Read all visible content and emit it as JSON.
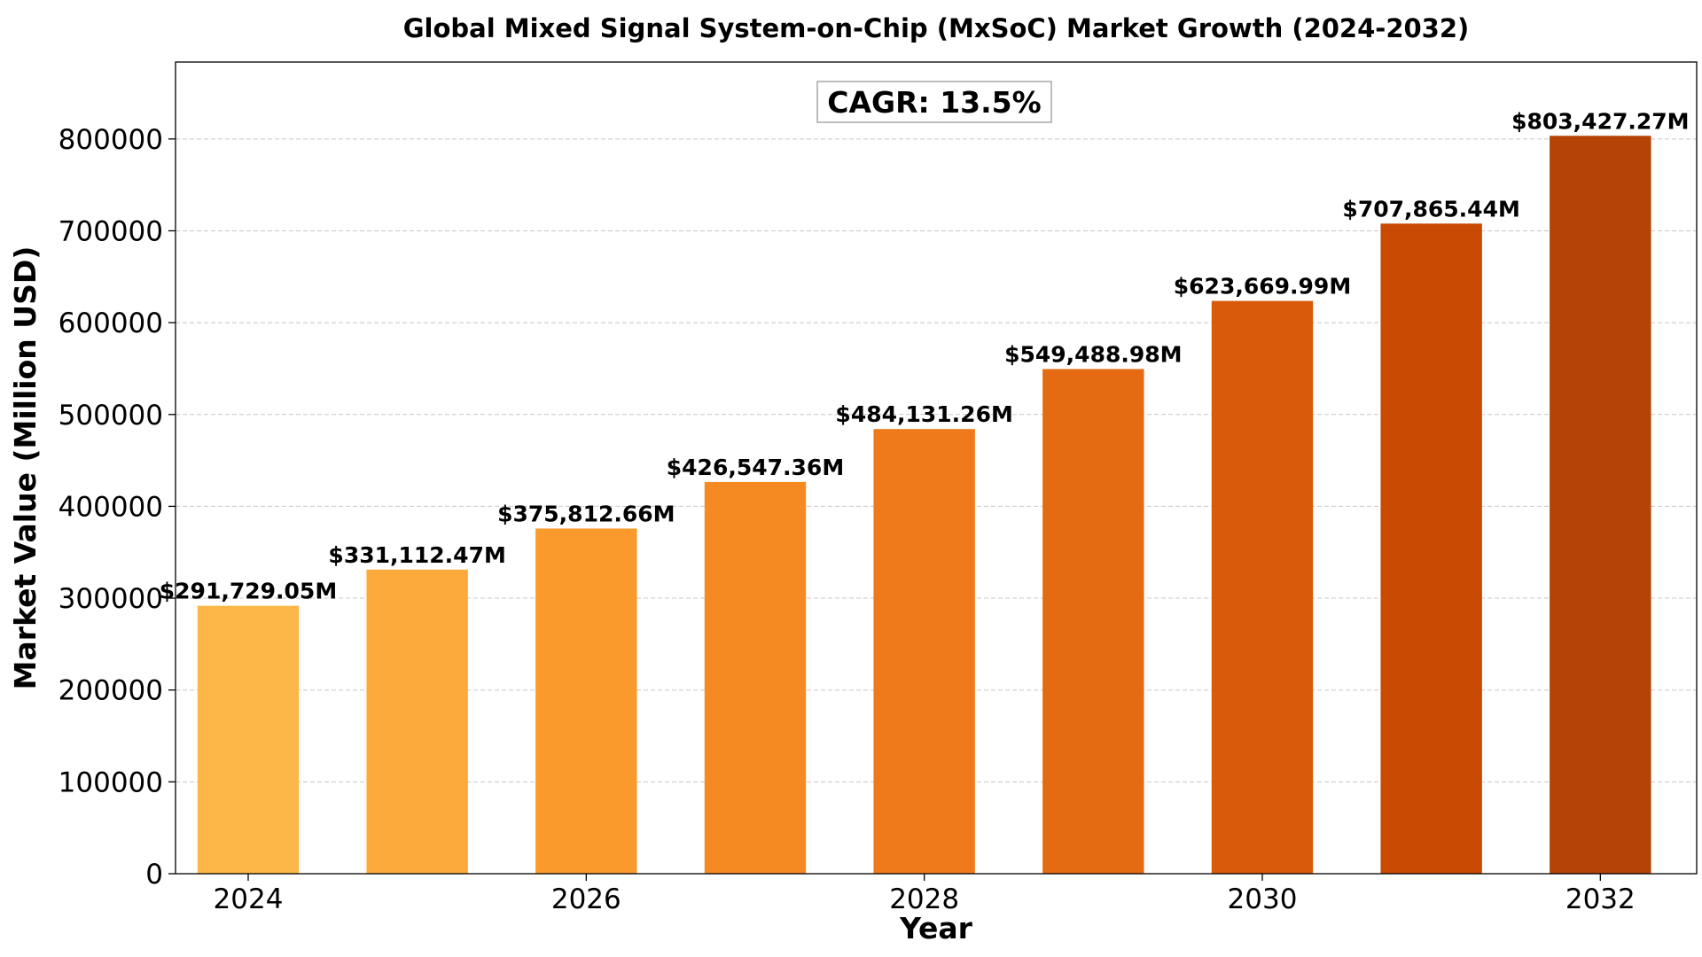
{
  "chart_data": {
    "type": "bar",
    "title": "Global Mixed Signal System-on-Chip (MxSoC) Market Growth (2024-2032)",
    "xlabel": "Year",
    "ylabel": "Market Value (Million USD)",
    "categories": [
      2024,
      2025,
      2026,
      2027,
      2028,
      2029,
      2030,
      2031,
      2032
    ],
    "values": [
      291729.05,
      331112.47,
      375812.66,
      426547.36,
      484131.26,
      549488.98,
      623669.99,
      707865.44,
      803427.27
    ],
    "data_labels": [
      "$291,729.05M",
      "$331,112.47M",
      "$375,812.66M",
      "$426,547.36M",
      "$484,131.26M",
      "$549,488.98M",
      "$623,669.99M",
      "$707,865.44M",
      "$803,427.27M"
    ],
    "bar_colors": [
      "#fdb748",
      "#fcaa3b",
      "#fa9a2c",
      "#f68a22",
      "#ef7a1b",
      "#e56b13",
      "#d95a0b",
      "#c94a03",
      "#b44305"
    ],
    "x_ticks": [
      2024,
      2026,
      2028,
      2030,
      2032
    ],
    "x_tick_labels": [
      "2024",
      "2026",
      "2028",
      "2030",
      "2032"
    ],
    "y_ticks": [
      0,
      100000,
      200000,
      300000,
      400000,
      500000,
      600000,
      700000,
      800000
    ],
    "y_tick_labels": [
      "0",
      "100000",
      "200000",
      "300000",
      "400000",
      "500000",
      "600000",
      "700000",
      "800000"
    ],
    "xlim": [
      2023.57,
      2032.57
    ],
    "ylim": [
      0,
      883770
    ],
    "grid": "y-axis dashed",
    "annotation": "CAGR: 13.5%"
  }
}
